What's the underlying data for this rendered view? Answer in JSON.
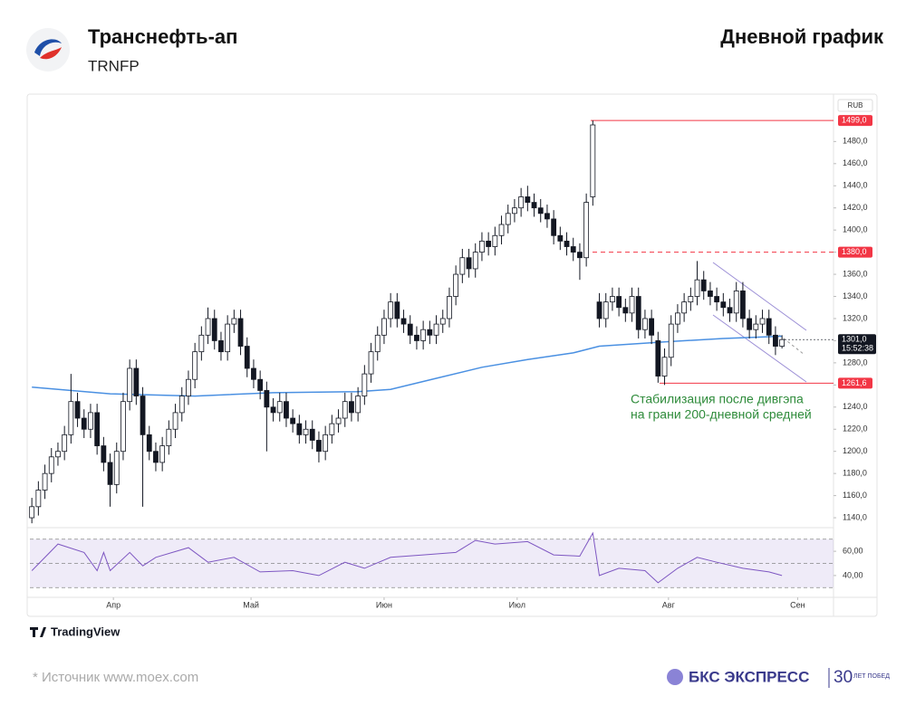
{
  "header": {
    "title": "Транснефть-ап",
    "ticker": "TRNFP",
    "right_title": "Дневной график"
  },
  "footer": {
    "tradingview": "TradingView",
    "source": "*  Источник www.moex.com",
    "brand": "БКС ЭКСПРЕСС",
    "brand_years": "30",
    "brand_tag": "ЛЕТ ПОБЕД"
  },
  "chart_data": {
    "type": "candlestick",
    "currency": "RUB",
    "up_color": "#ffffff",
    "down_color": "#131722",
    "outline_color": "#131722",
    "open": [
      1140,
      1150,
      1165,
      1180,
      1195,
      1200,
      1215,
      1245,
      1230,
      1220,
      1235,
      1205,
      1190,
      1170,
      1200,
      1245,
      1275,
      1250,
      1215,
      1200,
      1190,
      1205,
      1220,
      1235,
      1250,
      1265,
      1290,
      1305,
      1320,
      1300,
      1290,
      1315,
      1320,
      1295,
      1275,
      1265,
      1255,
      1240,
      1235,
      1245,
      1230,
      1225,
      1215,
      1220,
      1210,
      1200,
      1215,
      1225,
      1230,
      1245,
      1235,
      1250,
      1270,
      1290,
      1305,
      1320,
      1335,
      1320,
      1315,
      1305,
      1300,
      1310,
      1305,
      1315,
      1320,
      1340,
      1360,
      1375,
      1365,
      1380,
      1390,
      1385,
      1395,
      1405,
      1415,
      1420,
      1430,
      1425,
      1420,
      1415,
      1410,
      1395,
      1390,
      1385,
      1380,
      1375,
      1430,
      1335,
      1320,
      1335,
      1340,
      1330,
      1325,
      1340,
      1310,
      1320,
      1300,
      1268,
      1285,
      1315,
      1325,
      1335,
      1340,
      1355,
      1345,
      1340,
      1335,
      1330,
      1325,
      1345,
      1320,
      1310,
      1315,
      1320,
      1305,
      1295
    ],
    "high": [
      1158,
      1173,
      1188,
      1203,
      1208,
      1223,
      1270,
      1253,
      1238,
      1243,
      1243,
      1213,
      1198,
      1208,
      1253,
      1283,
      1283,
      1258,
      1223,
      1208,
      1213,
      1228,
      1243,
      1258,
      1273,
      1298,
      1313,
      1330,
      1328,
      1308,
      1323,
      1328,
      1328,
      1303,
      1283,
      1273,
      1263,
      1248,
      1253,
      1253,
      1238,
      1233,
      1228,
      1228,
      1218,
      1223,
      1233,
      1238,
      1253,
      1253,
      1258,
      1278,
      1298,
      1313,
      1328,
      1343,
      1343,
      1328,
      1323,
      1313,
      1318,
      1318,
      1323,
      1328,
      1348,
      1368,
      1383,
      1383,
      1388,
      1398,
      1398,
      1403,
      1413,
      1423,
      1428,
      1438,
      1440,
      1433,
      1428,
      1423,
      1418,
      1403,
      1398,
      1393,
      1388,
      1433,
      1499,
      1343,
      1343,
      1348,
      1348,
      1338,
      1348,
      1348,
      1328,
      1328,
      1308,
      1293,
      1323,
      1333,
      1343,
      1348,
      1372,
      1363,
      1353,
      1348,
      1343,
      1338,
      1353,
      1353,
      1328,
      1323,
      1328,
      1328,
      1313,
      1305
    ],
    "low": [
      1135,
      1142,
      1157,
      1172,
      1187,
      1192,
      1207,
      1222,
      1212,
      1212,
      1197,
      1182,
      1150,
      1162,
      1192,
      1237,
      1242,
      1150,
      1192,
      1182,
      1182,
      1197,
      1212,
      1227,
      1242,
      1257,
      1282,
      1297,
      1292,
      1282,
      1282,
      1307,
      1287,
      1267,
      1257,
      1247,
      1200,
      1227,
      1227,
      1222,
      1217,
      1207,
      1207,
      1202,
      1190,
      1192,
      1207,
      1217,
      1222,
      1227,
      1227,
      1242,
      1262,
      1282,
      1297,
      1312,
      1312,
      1307,
      1297,
      1292,
      1292,
      1297,
      1297,
      1307,
      1312,
      1332,
      1352,
      1357,
      1357,
      1372,
      1377,
      1377,
      1387,
      1397,
      1407,
      1412,
      1417,
      1412,
      1407,
      1402,
      1387,
      1382,
      1377,
      1372,
      1355,
      1367,
      1422,
      1312,
      1312,
      1327,
      1322,
      1317,
      1317,
      1302,
      1302,
      1297,
      1262,
      1260,
      1277,
      1307,
      1317,
      1327,
      1332,
      1337,
      1332,
      1327,
      1322,
      1317,
      1317,
      1312,
      1302,
      1302,
      1307,
      1297,
      1287,
      1293
    ],
    "close": [
      1150,
      1165,
      1180,
      1195,
      1200,
      1215,
      1245,
      1230,
      1220,
      1235,
      1205,
      1190,
      1170,
      1200,
      1245,
      1275,
      1250,
      1215,
      1200,
      1190,
      1205,
      1220,
      1235,
      1250,
      1265,
      1290,
      1305,
      1320,
      1300,
      1290,
      1315,
      1320,
      1295,
      1275,
      1265,
      1255,
      1240,
      1235,
      1245,
      1230,
      1225,
      1215,
      1220,
      1210,
      1200,
      1215,
      1225,
      1230,
      1245,
      1235,
      1250,
      1270,
      1290,
      1305,
      1320,
      1335,
      1320,
      1315,
      1305,
      1300,
      1310,
      1305,
      1315,
      1320,
      1340,
      1360,
      1375,
      1365,
      1380,
      1390,
      1385,
      1395,
      1405,
      1415,
      1420,
      1430,
      1425,
      1420,
      1415,
      1410,
      1395,
      1390,
      1385,
      1380,
      1375,
      1425,
      1495,
      1320,
      1335,
      1340,
      1330,
      1325,
      1340,
      1310,
      1320,
      1305,
      1268,
      1285,
      1315,
      1325,
      1335,
      1340,
      1355,
      1345,
      1340,
      1335,
      1330,
      1325,
      1345,
      1320,
      1310,
      1315,
      1320,
      1305,
      1295,
      1301
    ],
    "ma": {
      "color": "#4a90e2",
      "x": [
        0,
        12,
        25,
        37,
        50,
        55,
        62,
        69,
        76,
        83,
        87,
        97,
        106,
        115
      ],
      "values": [
        1258,
        1252,
        1250,
        1253,
        1254,
        1256,
        1266,
        1276,
        1283,
        1289,
        1295,
        1299,
        1302,
        1304
      ]
    },
    "xlim": [
      -0.3,
      122.9
    ],
    "xticks": [
      {
        "value": 12.5,
        "label": "Апр"
      },
      {
        "value": 33.6,
        "label": "Май"
      },
      {
        "value": 54,
        "label": "Июн"
      },
      {
        "value": 74.4,
        "label": "Июл"
      },
      {
        "value": 97.6,
        "label": "Авг"
      },
      {
        "value": 117.4,
        "label": "Сен"
      }
    ],
    "ylim": [
      1133.5,
      1522
    ],
    "yticks": [
      {
        "value": 1140,
        "label": "1140,0"
      },
      {
        "value": 1160,
        "label": "1160,0"
      },
      {
        "value": 1180,
        "label": "1180,0"
      },
      {
        "value": 1200,
        "label": "1200,0"
      },
      {
        "value": 1220,
        "label": "1220,0"
      },
      {
        "value": 1240,
        "label": "1240,0"
      },
      {
        "value": 1260,
        "label": "1260,0"
      },
      {
        "value": 1280,
        "label": "1280,0"
      },
      {
        "value": 1300,
        "label": "1300,0"
      },
      {
        "value": 1320,
        "label": "1320,0"
      },
      {
        "value": 1340,
        "label": "1340,0"
      },
      {
        "value": 1360,
        "label": "1360,0"
      },
      {
        "value": 1380,
        "label": "1380,0"
      },
      {
        "value": 1400,
        "label": "1400,0"
      },
      {
        "value": 1420,
        "label": "1420,0"
      },
      {
        "value": 1440,
        "label": "1440,0"
      },
      {
        "value": 1460,
        "label": "1460,0"
      },
      {
        "value": 1480,
        "label": "1480,0"
      }
    ],
    "levels": [
      {
        "value": 1499,
        "label": "1499,0",
        "style": "solid",
        "color": "#f23645"
      },
      {
        "value": 1380,
        "label": "1380,0",
        "style": "dashed",
        "color": "#f23645"
      },
      {
        "value": 1261.6,
        "label": "1261,6",
        "style": "solid",
        "color": "#f23645"
      }
    ],
    "last_price": {
      "value": 1301,
      "label": "1301,0",
      "time": "15:52:38"
    },
    "annotation": [
      "Стабилизация после дивгэпа",
      "на грани 200-дневной средней"
    ],
    "rsi": {
      "color": "#7e57c2",
      "x": [
        0,
        4,
        8,
        10,
        11,
        12,
        15,
        17,
        19,
        24,
        27,
        31,
        35,
        40,
        44,
        48,
        51,
        55,
        60,
        65,
        68,
        71,
        76,
        80,
        84,
        86,
        87,
        90,
        94,
        96,
        99,
        102,
        105,
        109,
        113,
        115
      ],
      "values": [
        44,
        66,
        59,
        44,
        59,
        44,
        59,
        48,
        55,
        63,
        51,
        55,
        43,
        44,
        40,
        51,
        46,
        55,
        57,
        59,
        69,
        66,
        68,
        57,
        56,
        75,
        40,
        46,
        44,
        34,
        46,
        55,
        51,
        46,
        43,
        40
      ],
      "ylim": [
        22,
        78
      ],
      "band": [
        30,
        70
      ],
      "mid": 50,
      "yticks": [
        {
          "value": 40,
          "label": "40,00"
        },
        {
          "value": 60,
          "label": "60,00"
        }
      ]
    }
  }
}
